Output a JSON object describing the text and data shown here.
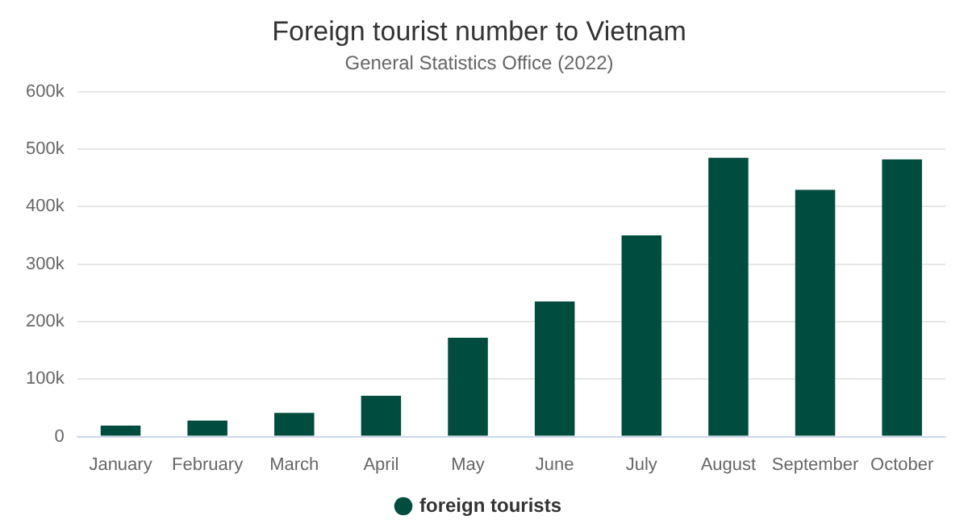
{
  "chart_data": {
    "type": "bar",
    "title": "Foreign tourist number to Vietnam",
    "subtitle": "General Statistics Office (2022)",
    "categories": [
      "January",
      "February",
      "March",
      "April",
      "May",
      "June",
      "July",
      "August",
      "September",
      "October"
    ],
    "series": [
      {
        "name": "foreign tourists",
        "color": "#004d40",
        "values": [
          19000,
          28000,
          41000,
          71000,
          172000,
          235000,
          350000,
          485000,
          429000,
          482000
        ]
      }
    ],
    "ylim": [
      0,
      600000
    ],
    "yticks": [
      {
        "value": 0,
        "label": "0"
      },
      {
        "value": 100000,
        "label": "100k"
      },
      {
        "value": 200000,
        "label": "200k"
      },
      {
        "value": 300000,
        "label": "300k"
      },
      {
        "value": 400000,
        "label": "400k"
      },
      {
        "value": 500000,
        "label": "500k"
      },
      {
        "value": 600000,
        "label": "600k"
      }
    ],
    "grid": "y",
    "legend": "bottom"
  }
}
